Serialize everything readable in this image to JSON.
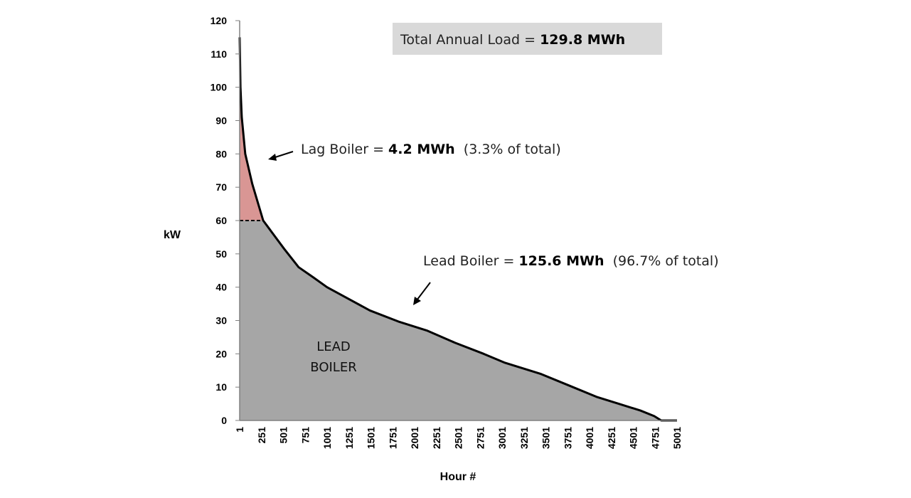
{
  "chart_data": {
    "type": "area",
    "title": "",
    "xlabel": "Hour #",
    "ylabel": "kW",
    "xlim": [
      1,
      5001
    ],
    "ylim": [
      0,
      120
    ],
    "x_ticks": [
      "1",
      "251",
      "501",
      "751",
      "1001",
      "1251",
      "1501",
      "1751",
      "2001",
      "2251",
      "2501",
      "2751",
      "3001",
      "3251",
      "3501",
      "3751",
      "4001",
      "4251",
      "4501",
      "4751",
      "5001"
    ],
    "y_ticks": [
      "0",
      "10",
      "20",
      "30",
      "40",
      "50",
      "60",
      "70",
      "80",
      "90",
      "100",
      "110",
      "120"
    ],
    "grid": false,
    "lag_threshold_kw": 60,
    "series": {
      "x": [
        1,
        10,
        25,
        65,
        145,
        270,
        510,
        675,
        840,
        1000,
        1245,
        1490,
        1815,
        2140,
        2465,
        2790,
        3035,
        3440,
        3765,
        4090,
        4335,
        4580,
        4740,
        4820,
        5001
      ],
      "y": [
        115,
        100,
        91,
        80,
        71,
        60,
        51.5,
        46,
        43,
        40,
        36.5,
        33,
        29.7,
        27,
        23.3,
        20,
        17.3,
        14,
        10.5,
        7,
        5,
        3,
        1.3,
        0,
        0
      ]
    },
    "colors": {
      "lead": "#a6a6a6",
      "lag": "#d99694",
      "curve": "#000000",
      "total_box": "#d9d9d9"
    },
    "annotations": {
      "total": {
        "prefix": "Total Annual Load = ",
        "value": "129.8 MWh"
      },
      "lag": {
        "prefix": "Lag Boiler = ",
        "value": "4.2 MWh",
        "suffix": "  (3.3% of total)"
      },
      "lead": {
        "prefix": "Lead Boiler = ",
        "value": "125.6 MWh",
        "suffix": "  (96.7% of total)"
      },
      "lead_area_label": [
        "LEAD",
        "BOILER"
      ]
    }
  }
}
